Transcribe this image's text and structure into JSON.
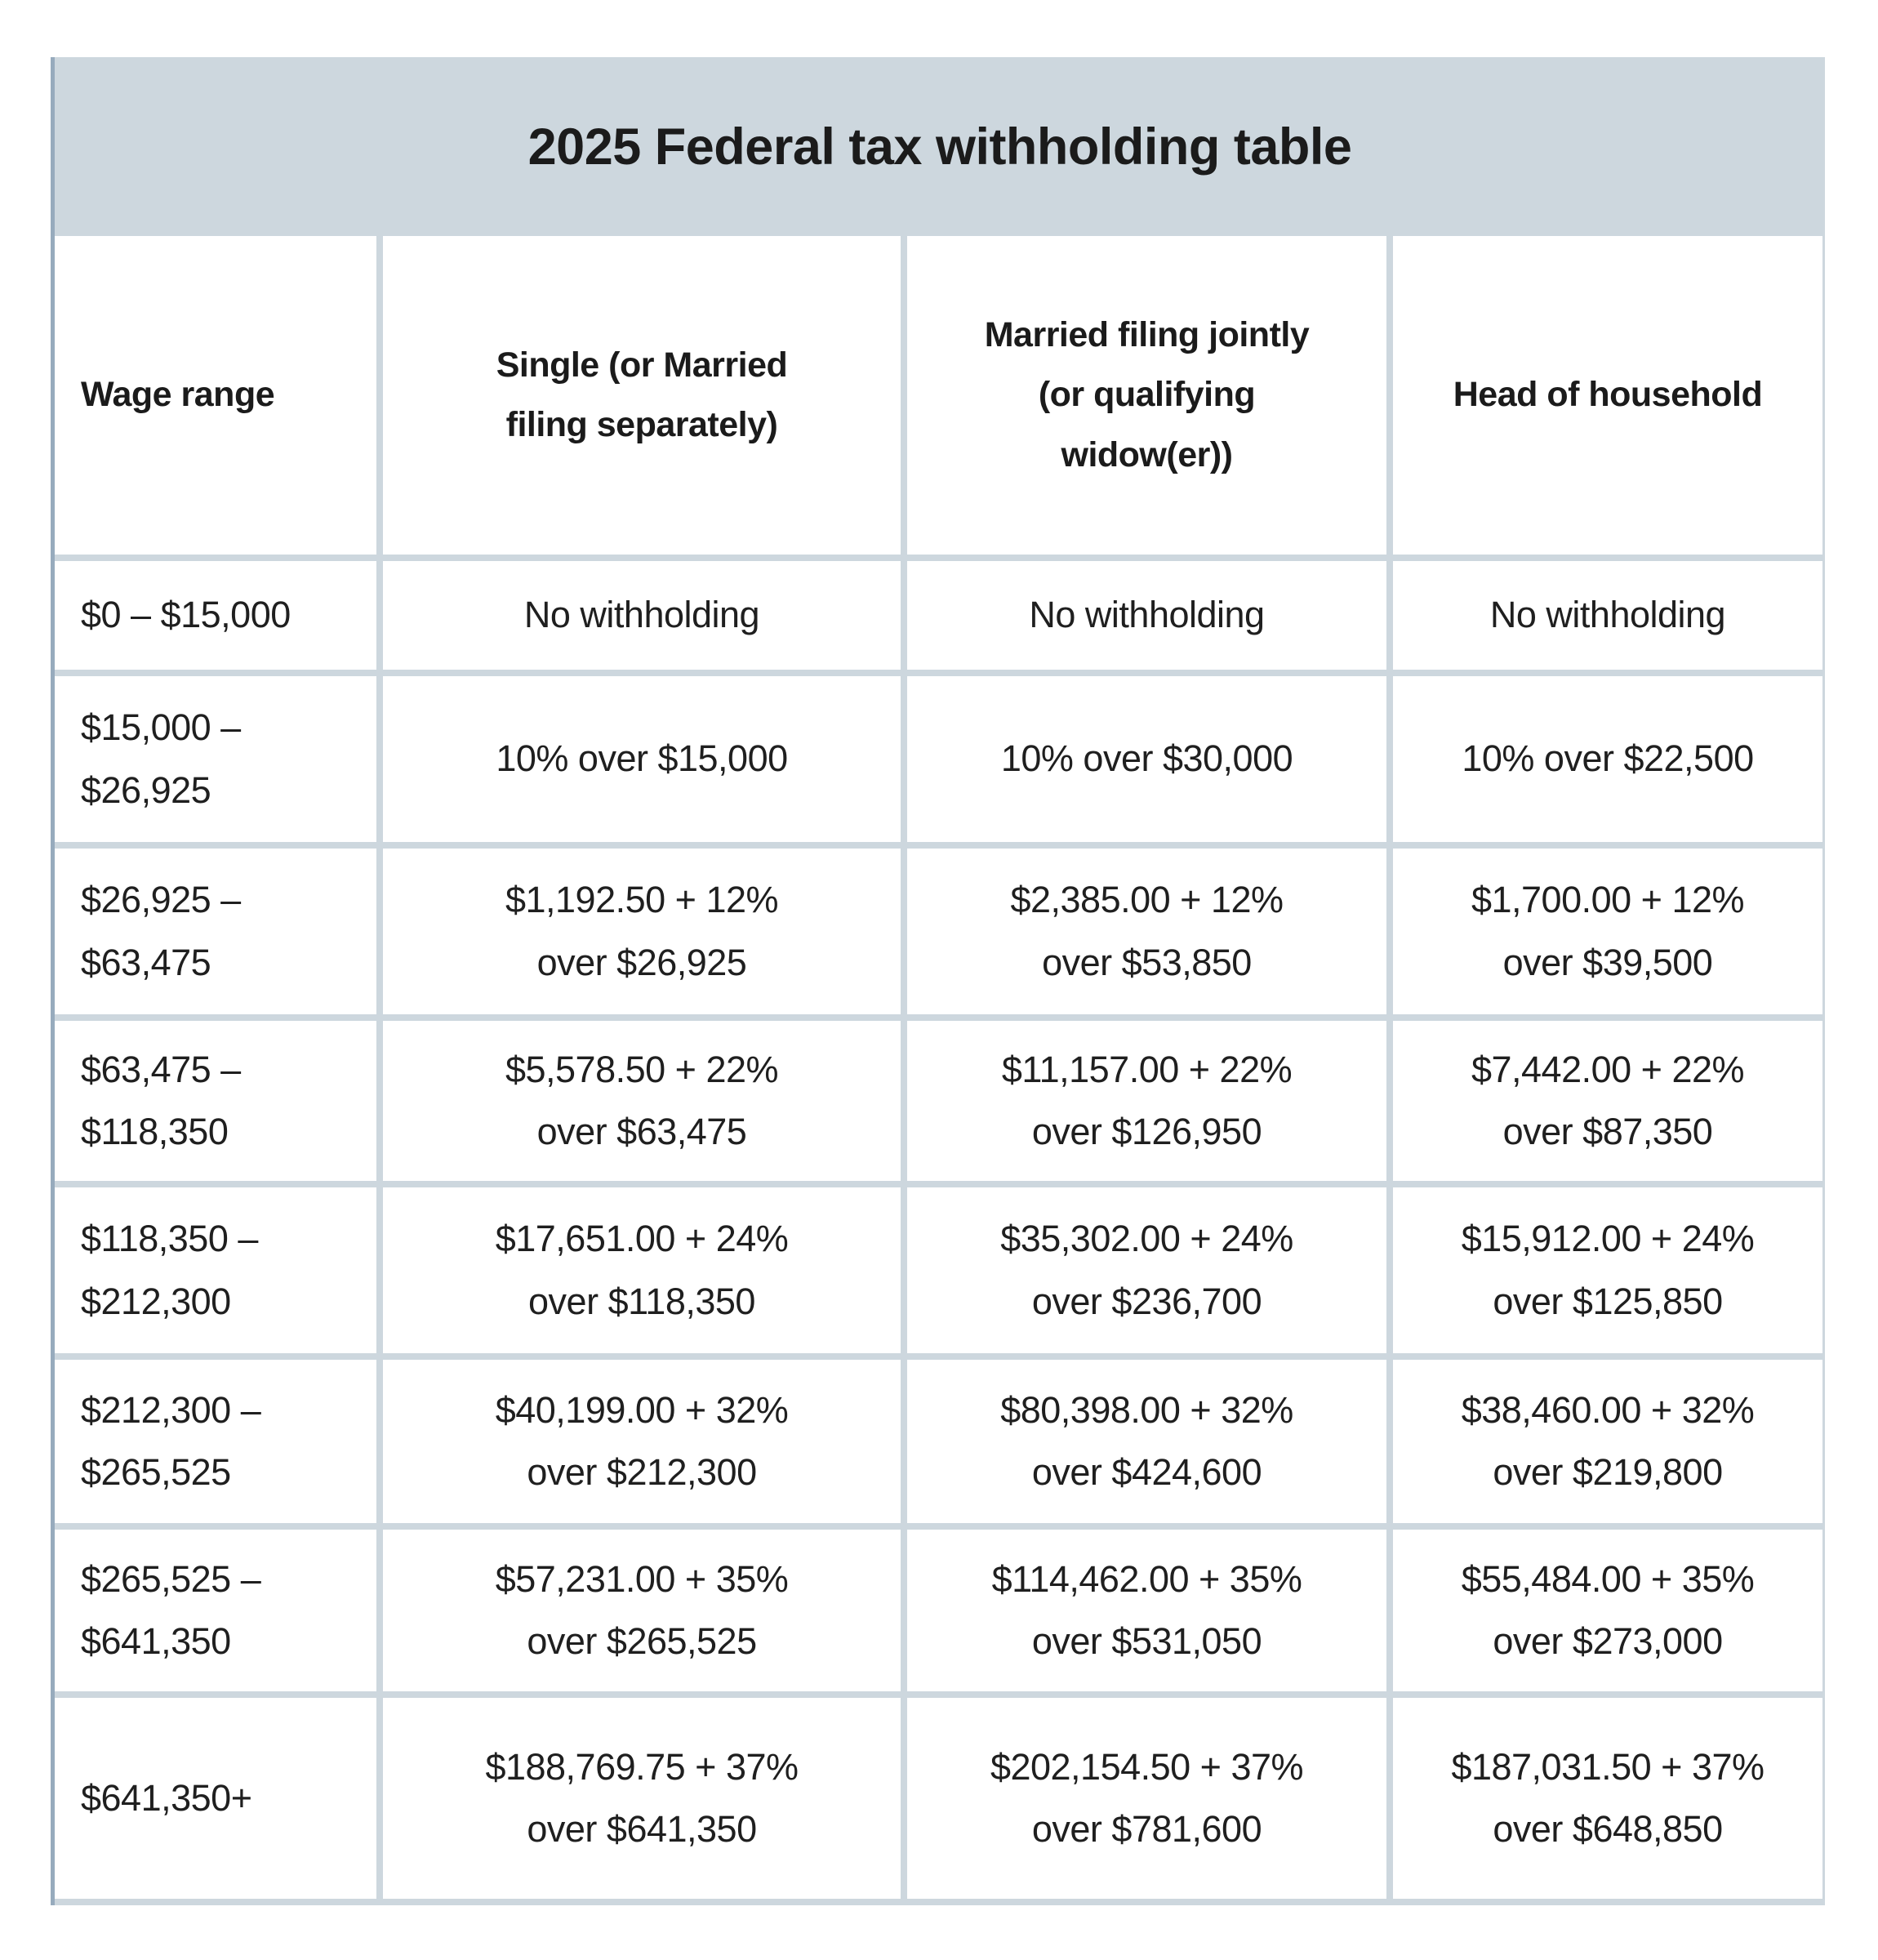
{
  "page": {
    "background": "#ffffff"
  },
  "table": {
    "title": "2025 Federal tax withholding table",
    "columns": [
      "Wage range",
      "Single (or Married\nfiling separately)",
      "Married filing jointly\n(or qualifying\nwidow(er))",
      "Head of household"
    ],
    "rows": [
      [
        "$0 – $15,000",
        "No withholding",
        "No withholding",
        "No withholding"
      ],
      [
        "$15,000 –\n$26,925",
        "10% over $15,000",
        "10% over $30,000",
        "10% over $22,500"
      ],
      [
        "$26,925 –\n$63,475",
        "$1,192.50 + 12%\nover $26,925",
        "$2,385.00 + 12%\nover $53,850",
        "$1,700.00 + 12%\nover $39,500"
      ],
      [
        "$63,475 –\n$118,350",
        "$5,578.50 + 22%\nover $63,475",
        "$11,157.00 + 22%\nover $126,950",
        "$7,442.00 + 22%\nover $87,350"
      ],
      [
        "$118,350 –\n$212,300",
        "$17,651.00 + 24%\nover $118,350",
        "$35,302.00 + 24%\nover $236,700",
        "$15,912.00 + 24%\nover $125,850"
      ],
      [
        "$212,300 –\n$265,525",
        "$40,199.00 + 32%\nover $212,300",
        "$80,398.00 + 32%\nover $424,600",
        "$38,460.00 + 32%\nover $219,800"
      ],
      [
        "$265,525 –\n$641,350",
        "$57,231.00 + 35%\nover $265,525",
        "$114,462.00 + 35%\nover $531,050",
        "$55,484.00 + 35%\nover $273,000"
      ],
      [
        "$641,350+",
        "$188,769.75 + 37%\nover $641,350",
        "$202,154.50 + 37%\nover $781,600",
        "$187,031.50 + 37%\nover $648,850"
      ]
    ],
    "colors": {
      "header_band": "#cdd7de",
      "grid_lines": "#cdd7de",
      "left_edge": "#97abbd",
      "text": "#1f1f1f"
    }
  }
}
